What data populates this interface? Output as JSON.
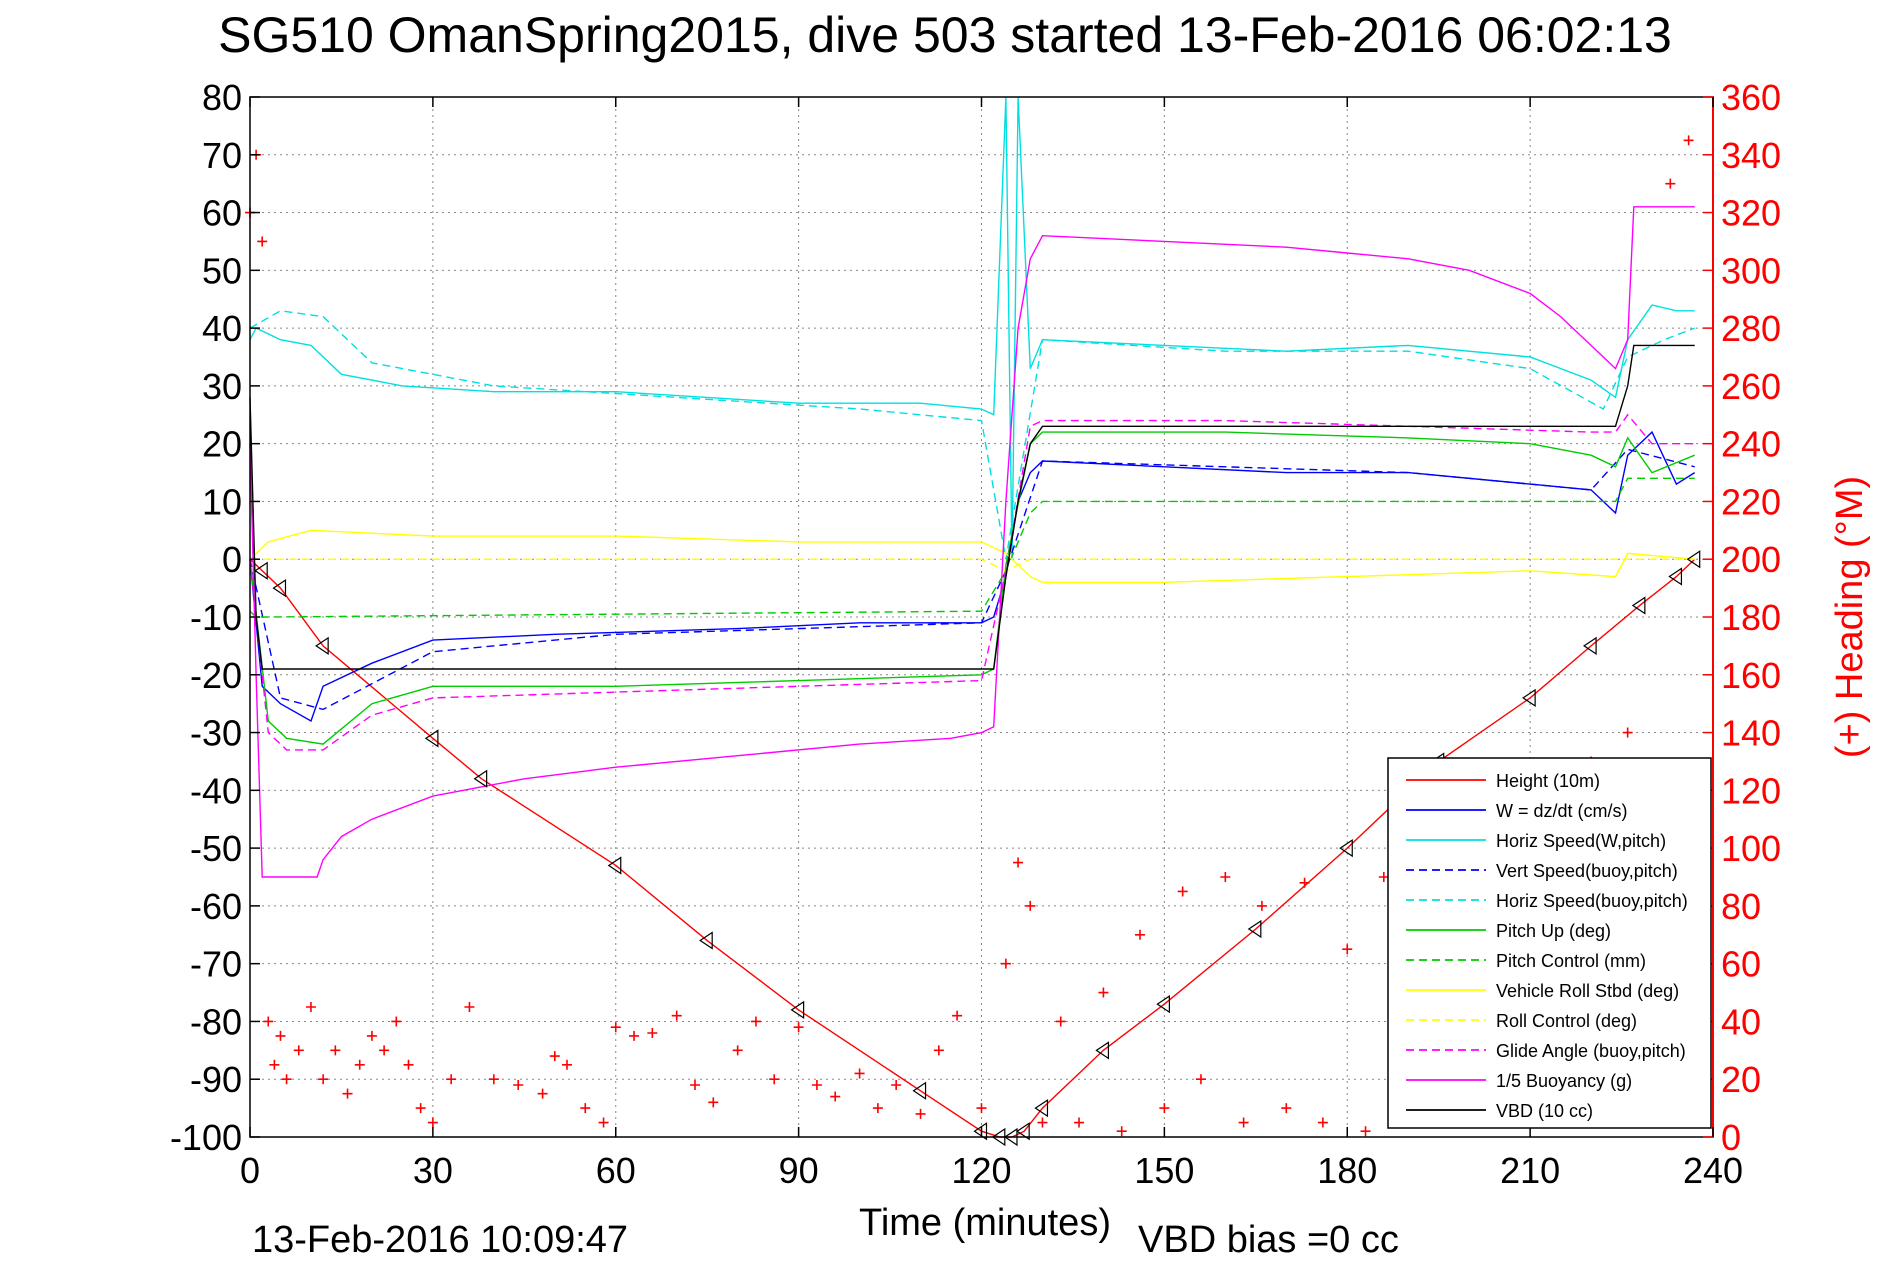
{
  "chart_data": {
    "type": "line",
    "title": "SG510 OmanSpring2015, dive 503 started 13-Feb-2016 06:02:13",
    "xlabel": "Time (minutes)",
    "ylabel_right": "(+) Heading (°M)",
    "footer_left": "13-Feb-2016 10:09:47",
    "footer_right": "VBD bias =0 cc",
    "xlim": [
      0,
      240
    ],
    "ylim_left": [
      -100,
      80
    ],
    "ylim_right": [
      0,
      360
    ],
    "x_ticks": [
      "0",
      "30",
      "60",
      "90",
      "120",
      "150",
      "180",
      "210",
      "240"
    ],
    "y_ticks_left": [
      "80",
      "70",
      "60",
      "50",
      "40",
      "30",
      "20",
      "10",
      "0",
      "-10",
      "-20",
      "-30",
      "-40",
      "-50",
      "-60",
      "-70",
      "-80",
      "-90",
      "-100"
    ],
    "y_ticks_right": [
      "360",
      "340",
      "320",
      "300",
      "280",
      "260",
      "240",
      "220",
      "200",
      "180",
      "160",
      "140",
      "120",
      "100",
      "80",
      "60",
      "40",
      "20",
      "0"
    ],
    "grid": true,
    "legend_position": "bottom-right",
    "series": [
      {
        "name": "Height (10m)",
        "color": "#ff0000",
        "dash": "solid",
        "x": [
          0,
          2,
          5,
          12,
          30,
          38,
          60,
          75,
          90,
          110,
          120,
          123,
          125,
          127,
          130,
          140,
          150,
          165,
          180,
          195,
          210,
          220,
          228,
          234,
          237
        ],
        "y": [
          0,
          -2,
          -5,
          -15,
          -31,
          -38,
          -53,
          -66,
          -78,
          -92,
          -99,
          -100,
          -100,
          -99,
          -95,
          -85,
          -77,
          -64,
          -50,
          -35,
          -24,
          -15,
          -8,
          -3,
          0
        ]
      },
      {
        "name": "W = dz/dt (cm/s)",
        "color": "#0000ff",
        "dash": "solid",
        "x": [
          0,
          2,
          5,
          10,
          12,
          20,
          30,
          50,
          80,
          100,
          120,
          122,
          124,
          126,
          128,
          130,
          150,
          170,
          190,
          210,
          220,
          224,
          226,
          230,
          234,
          237
        ],
        "y": [
          0,
          -22,
          -25,
          -28,
          -22,
          -18,
          -14,
          -13,
          -12,
          -11,
          -11,
          -10,
          -3,
          10,
          15,
          17,
          16,
          15,
          15,
          13,
          12,
          8,
          18,
          22,
          13,
          15
        ]
      },
      {
        "name": "Horiz Speed(W,pitch)",
        "color": "#00e0e0",
        "dash": "solid",
        "x": [
          0,
          1,
          5,
          10,
          15,
          25,
          40,
          60,
          90,
          110,
          120,
          122,
          124,
          125,
          126,
          128,
          130,
          150,
          170,
          190,
          210,
          220,
          224,
          226,
          230,
          234,
          237
        ],
        "y": [
          38,
          40,
          38,
          37,
          32,
          30,
          29,
          29,
          27,
          27,
          26,
          25,
          80,
          0,
          80,
          33,
          38,
          37,
          36,
          37,
          35,
          31,
          28,
          38,
          44,
          43,
          43
        ]
      },
      {
        "name": "Vert Speed(buoy,pitch)",
        "color": "#0000ff",
        "dash": "dashed",
        "x": [
          0,
          5,
          12,
          30,
          60,
          90,
          120,
          124,
          130,
          160,
          190,
          220,
          226,
          237
        ],
        "y": [
          0,
          -24,
          -26,
          -16,
          -13,
          -12,
          -11,
          -2,
          17,
          16,
          15,
          12,
          19,
          16
        ]
      },
      {
        "name": "Horiz Speed(buoy,pitch)",
        "color": "#00e0e0",
        "dash": "dashed",
        "x": [
          0,
          5,
          12,
          20,
          40,
          70,
          100,
          120,
          124,
          130,
          160,
          190,
          210,
          222,
          226,
          232,
          237
        ],
        "y": [
          40,
          43,
          42,
          34,
          30,
          28,
          26,
          24,
          0,
          38,
          36,
          36,
          33,
          26,
          35,
          38,
          40
        ]
      },
      {
        "name": "Pitch Up (deg)",
        "color": "#00cc00",
        "dash": "solid",
        "x": [
          0,
          3,
          6,
          12,
          20,
          30,
          60,
          90,
          120,
          122,
          124,
          128,
          130,
          160,
          190,
          210,
          220,
          224,
          226,
          230,
          237
        ],
        "y": [
          0,
          -28,
          -31,
          -32,
          -25,
          -22,
          -22,
          -21,
          -20,
          -19,
          -1,
          20,
          22,
          22,
          21,
          20,
          18,
          16,
          21,
          15,
          18
        ]
      },
      {
        "name": "Pitch Control (mm)",
        "color": "#00cc00",
        "dash": "dashed",
        "x": [
          0,
          1,
          3,
          120,
          124,
          128,
          130,
          224,
          226,
          237
        ],
        "y": [
          -9,
          -10,
          -10,
          -9,
          -2,
          8,
          10,
          10,
          14,
          14
        ]
      },
      {
        "name": "Vehicle Roll Stbd (deg)",
        "color": "#ffff00",
        "dash": "solid",
        "x": [
          0,
          3,
          10,
          30,
          60,
          90,
          110,
          120,
          124,
          128,
          130,
          150,
          180,
          210,
          224,
          226,
          237
        ],
        "y": [
          0,
          3,
          5,
          4,
          4,
          3,
          3,
          3,
          1,
          -3,
          -4,
          -4,
          -3,
          -2,
          -3,
          1,
          0
        ]
      },
      {
        "name": "Roll Control (deg)",
        "color": "#ffff00",
        "dash": "dashed",
        "x": [
          0,
          3,
          120,
          124,
          128,
          237
        ],
        "y": [
          0,
          0,
          0,
          -2,
          0,
          0
        ]
      },
      {
        "name": "Glide Angle (buoy,pitch)",
        "color": "#ff00ff",
        "dash": "dashed",
        "x": [
          0,
          3,
          6,
          12,
          20,
          30,
          60,
          90,
          120,
          124,
          128,
          130,
          160,
          190,
          220,
          224,
          226,
          230,
          237
        ],
        "y": [
          0,
          -30,
          -33,
          -33,
          -27,
          -24,
          -23,
          -22,
          -21,
          -2,
          23,
          24,
          24,
          23,
          22,
          22,
          25,
          20,
          20
        ]
      },
      {
        "name": "1/5 Buoyancy (g)",
        "color": "#ff00ff",
        "dash": "solid",
        "x": [
          0,
          1,
          2,
          11,
          12,
          15,
          20,
          30,
          45,
          60,
          80,
          100,
          115,
          120,
          122,
          124,
          126,
          128,
          130,
          150,
          170,
          180,
          190,
          200,
          210,
          215,
          222,
          224,
          226,
          227,
          237
        ],
        "y": [
          20,
          -20,
          -55,
          -55,
          -52,
          -48,
          -45,
          -41,
          -38,
          -36,
          -34,
          -32,
          -31,
          -30,
          -29,
          10,
          40,
          52,
          56,
          55,
          54,
          53,
          52,
          50,
          46,
          42,
          35,
          33,
          38,
          61,
          61
        ]
      },
      {
        "name": "VBD (10 cc)",
        "color": "#000000",
        "dash": "solid",
        "x": [
          0,
          1,
          2,
          30,
          60,
          90,
          120,
          122,
          124,
          126,
          128,
          130,
          160,
          190,
          220,
          224,
          226,
          227,
          237
        ],
        "y": [
          28,
          -10,
          -19,
          -19,
          -19,
          -19,
          -19,
          -19,
          -3,
          10,
          20,
          23,
          23,
          23,
          23,
          23,
          30,
          37,
          37
        ]
      }
    ],
    "heading_markers": {
      "axis": "right",
      "color": "#ff0000",
      "marker": "+",
      "x": [
        0,
        1,
        2,
        3,
        4,
        5,
        6,
        8,
        10,
        12,
        14,
        16,
        18,
        20,
        22,
        24,
        26,
        28,
        30,
        33,
        36,
        40,
        44,
        48,
        50,
        52,
        55,
        58,
        60,
        63,
        66,
        70,
        73,
        76,
        80,
        83,
        86,
        90,
        93,
        96,
        100,
        103,
        106,
        110,
        113,
        116,
        120,
        124,
        126,
        128,
        130,
        133,
        136,
        140,
        143,
        146,
        150,
        153,
        156,
        160,
        163,
        166,
        170,
        173,
        176,
        180,
        183,
        186,
        190,
        193,
        196,
        200,
        203,
        206,
        210,
        213,
        216,
        220,
        223,
        226,
        230,
        233,
        236
      ],
      "y": [
        320,
        340,
        310,
        40,
        25,
        35,
        20,
        30,
        45,
        20,
        30,
        15,
        25,
        35,
        30,
        40,
        25,
        10,
        5,
        20,
        45,
        20,
        18,
        15,
        28,
        25,
        10,
        5,
        38,
        35,
        36,
        42,
        18,
        12,
        30,
        40,
        20,
        38,
        18,
        14,
        22,
        10,
        18,
        8,
        30,
        42,
        10,
        60,
        95,
        80,
        5,
        40,
        5,
        50,
        2,
        70,
        10,
        85,
        20,
        90,
        5,
        80,
        10,
        88,
        5,
        65,
        2,
        90,
        10,
        95,
        5,
        100,
        8,
        110,
        5,
        120,
        10,
        130,
        5,
        140,
        8,
        330,
        345
      ]
    }
  }
}
